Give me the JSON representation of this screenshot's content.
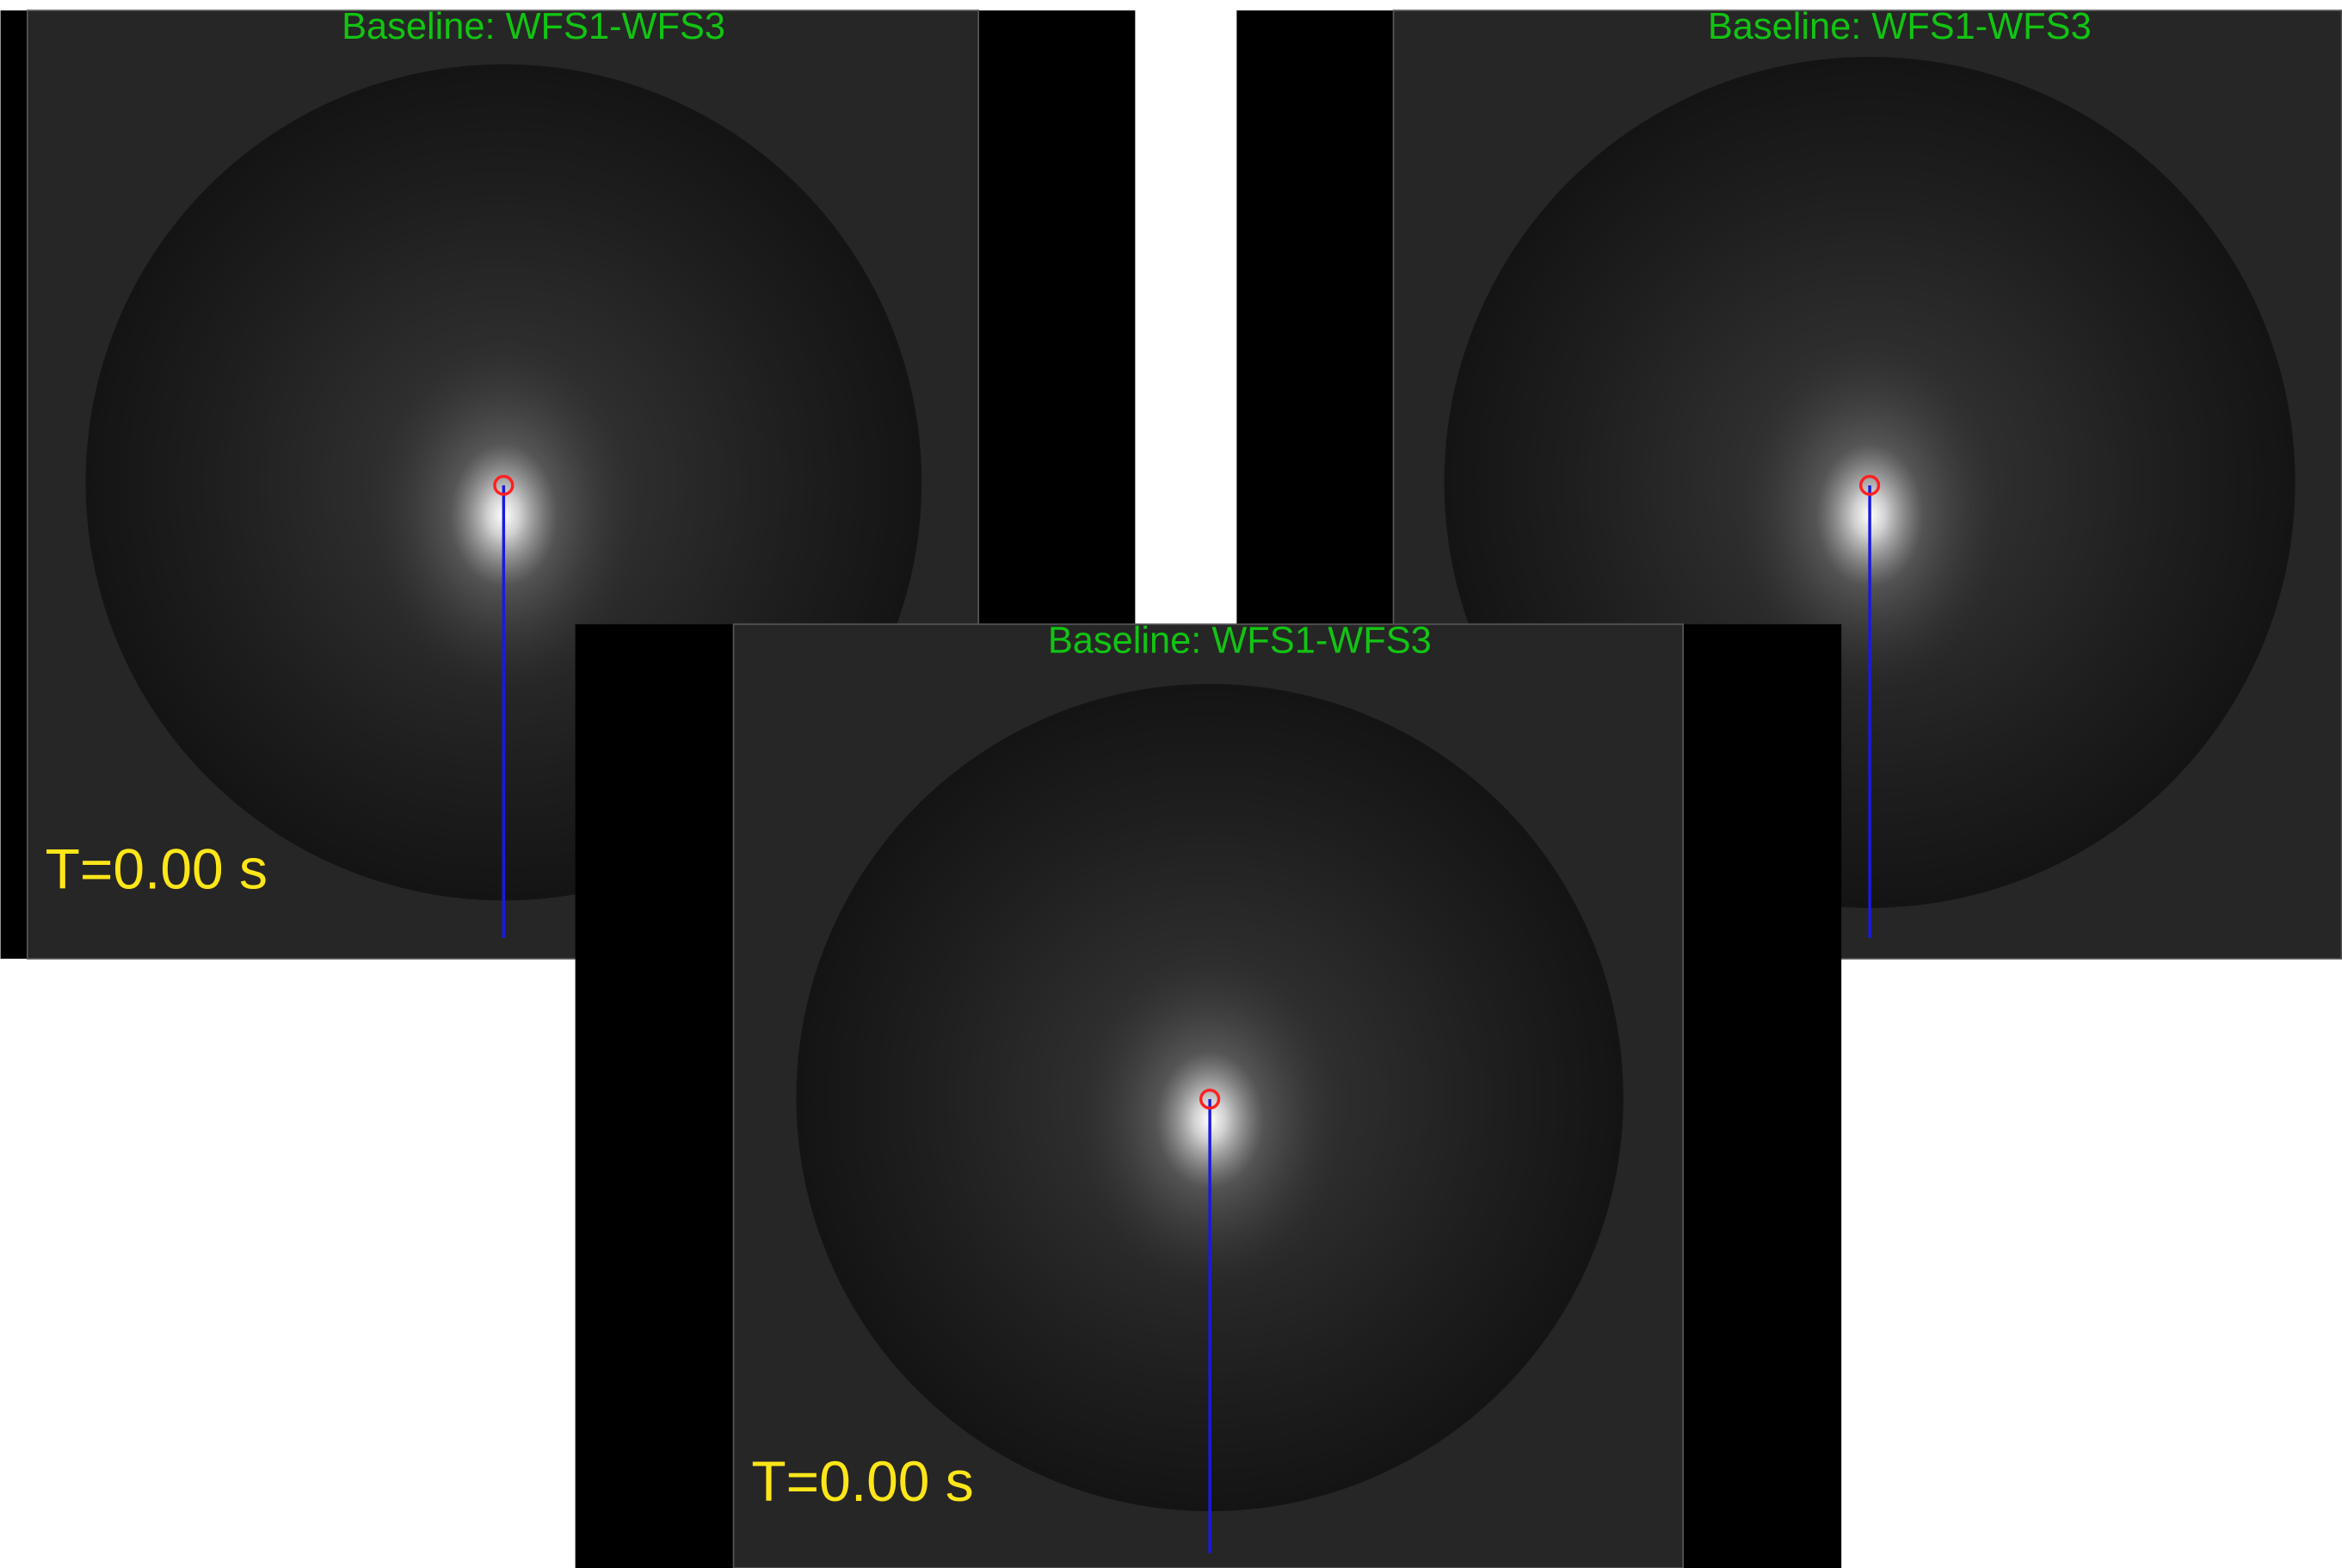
{
  "panels": [
    {
      "title": "Baseline: WFS1-WFS3",
      "time_label": "T=0.00 s"
    },
    {
      "title": "Baseline: WFS1-WFS3"
    },
    {
      "title": "Baseline: WFS1-WFS3",
      "time_label": "T=0.00 s"
    }
  ]
}
